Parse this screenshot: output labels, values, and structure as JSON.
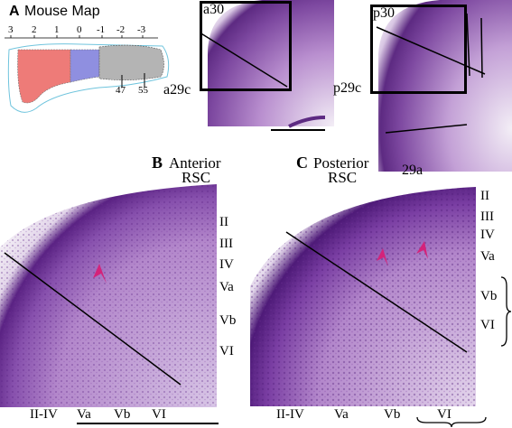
{
  "panel_a": {
    "letter": "A",
    "title": "Mouse Map",
    "axis_ticks": [
      "3",
      "2",
      "1",
      "0",
      "-1",
      "-2",
      "-3"
    ],
    "region_markers": [
      "47",
      "55"
    ],
    "section_labels": [
      "a30",
      "a29c",
      "p30",
      "p29c",
      "29a"
    ]
  },
  "panel_b": {
    "letter": "B",
    "title_line1": "Anterior",
    "title_line2": "RSC",
    "layers_right": [
      "II",
      "III",
      "IV",
      "Va",
      "Vb",
      "VI"
    ],
    "layers_bottom": [
      "II-IV",
      "Va",
      "Vb",
      "VI"
    ]
  },
  "panel_c": {
    "letter": "C",
    "title_line1": "Posterior",
    "title_line2": "RSC",
    "layers_right": [
      "II",
      "III",
      "IV",
      "Va",
      "Vb",
      "VI"
    ],
    "layers_bottom": [
      "II-IV",
      "Va",
      "Vb",
      "VI"
    ]
  },
  "colors": {
    "nissl_purple": "#6a2a8a",
    "tissue_light": "#e8dcef",
    "arrow_magenta": "#d4237a",
    "map_red": "#ee7b78",
    "map_blue": "#8f8fe0",
    "map_gray": "#b4b4b4"
  }
}
